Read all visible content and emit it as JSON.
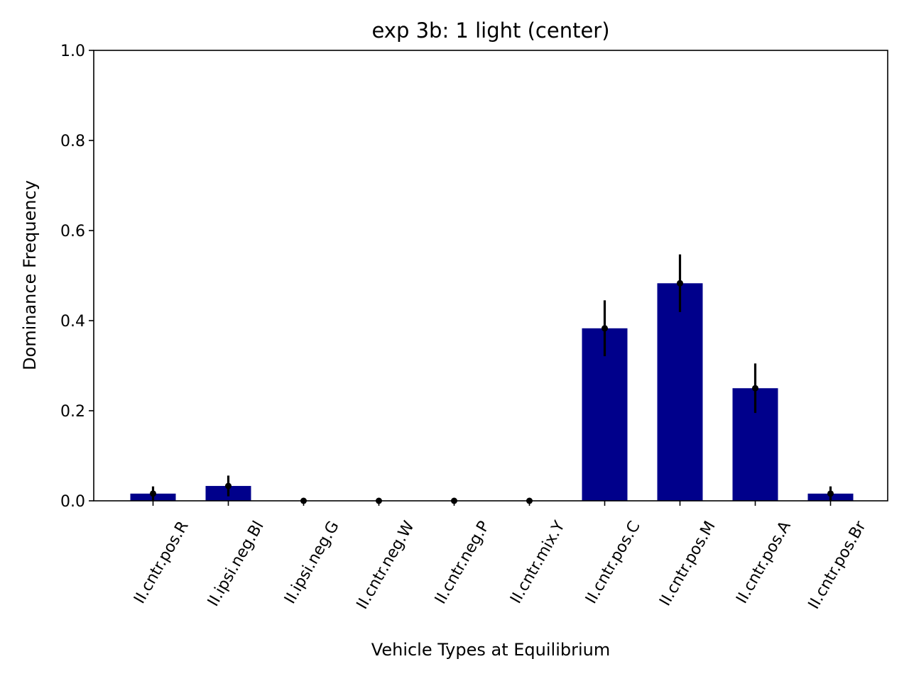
{
  "chart_data": {
    "type": "bar",
    "title": "exp 3b: 1 light (center)",
    "xlabel": "Vehicle Types at Equilibrium",
    "ylabel": "Dominance Frequency",
    "ylim": [
      0,
      1.0
    ],
    "yticks": [
      "0.0",
      "0.2",
      "0.4",
      "0.6",
      "0.8",
      "1.0"
    ],
    "categories": [
      "II.cntr.pos.R",
      "II.ipsi.neg.Bl",
      "II.ipsi.neg.G",
      "II.cntr.neg.W",
      "II.cntr.neg.P",
      "II.cntr.mix.Y",
      "II.cntr.pos.C",
      "II.cntr.pos.M",
      "II.cntr.pos.A",
      "II.cntr.pos.Br"
    ],
    "values": [
      0.016,
      0.033,
      0.0,
      0.0,
      0.0,
      0.0,
      0.383,
      0.483,
      0.25,
      0.016
    ],
    "errors": [
      0.016,
      0.023,
      0.0,
      0.0,
      0.0,
      0.0,
      0.062,
      0.064,
      0.055,
      0.016
    ],
    "bar_color": "#00008b",
    "error_color": "#000000",
    "grid": false,
    "legend": "none"
  }
}
